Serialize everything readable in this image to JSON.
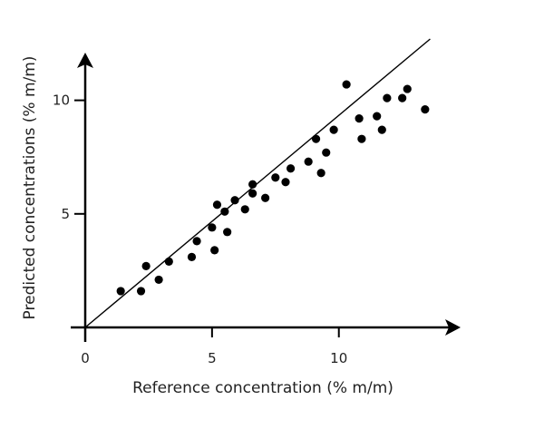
{
  "chart_data": {
    "type": "scatter",
    "title": "",
    "xlabel": "Reference concentration (% m/m)",
    "ylabel": "Predicted concentrations (% m/m)",
    "xlim": [
      0,
      14.8
    ],
    "ylim": [
      0,
      12.5
    ],
    "x_ticks": [
      {
        "value": 0,
        "label": "0"
      },
      {
        "value": 5,
        "label": "5"
      },
      {
        "value": 10,
        "label": "10"
      }
    ],
    "y_ticks": [
      {
        "value": 5,
        "label": "5"
      },
      {
        "value": 10,
        "label": "10"
      }
    ],
    "grid": false,
    "legend": "none",
    "marker_color": "#000000",
    "line_color": "#000000",
    "fit_line": {
      "x": [
        0,
        13.6
      ],
      "y": [
        0,
        12.7
      ]
    },
    "points": [
      {
        "x": 1.4,
        "y": 1.6
      },
      {
        "x": 2.2,
        "y": 1.6
      },
      {
        "x": 2.4,
        "y": 2.7
      },
      {
        "x": 2.9,
        "y": 2.1
      },
      {
        "x": 3.3,
        "y": 2.9
      },
      {
        "x": 4.2,
        "y": 3.1
      },
      {
        "x": 4.4,
        "y": 3.8
      },
      {
        "x": 5.0,
        "y": 4.4
      },
      {
        "x": 5.1,
        "y": 3.4
      },
      {
        "x": 5.2,
        "y": 5.4
      },
      {
        "x": 5.5,
        "y": 5.1
      },
      {
        "x": 5.6,
        "y": 4.2
      },
      {
        "x": 5.9,
        "y": 5.6
      },
      {
        "x": 6.3,
        "y": 5.2
      },
      {
        "x": 6.6,
        "y": 6.3
      },
      {
        "x": 6.6,
        "y": 5.9
      },
      {
        "x": 7.1,
        "y": 5.7
      },
      {
        "x": 7.5,
        "y": 6.6
      },
      {
        "x": 7.9,
        "y": 6.4
      },
      {
        "x": 8.1,
        "y": 7.0
      },
      {
        "x": 8.8,
        "y": 7.3
      },
      {
        "x": 9.1,
        "y": 8.3
      },
      {
        "x": 9.3,
        "y": 6.8
      },
      {
        "x": 9.5,
        "y": 7.7
      },
      {
        "x": 9.8,
        "y": 8.7
      },
      {
        "x": 10.3,
        "y": 10.7
      },
      {
        "x": 10.8,
        "y": 9.2
      },
      {
        "x": 10.9,
        "y": 8.3
      },
      {
        "x": 11.5,
        "y": 9.3
      },
      {
        "x": 11.7,
        "y": 8.7
      },
      {
        "x": 11.9,
        "y": 10.1
      },
      {
        "x": 12.5,
        "y": 10.1
      },
      {
        "x": 12.7,
        "y": 10.5
      },
      {
        "x": 13.4,
        "y": 9.6
      }
    ]
  }
}
